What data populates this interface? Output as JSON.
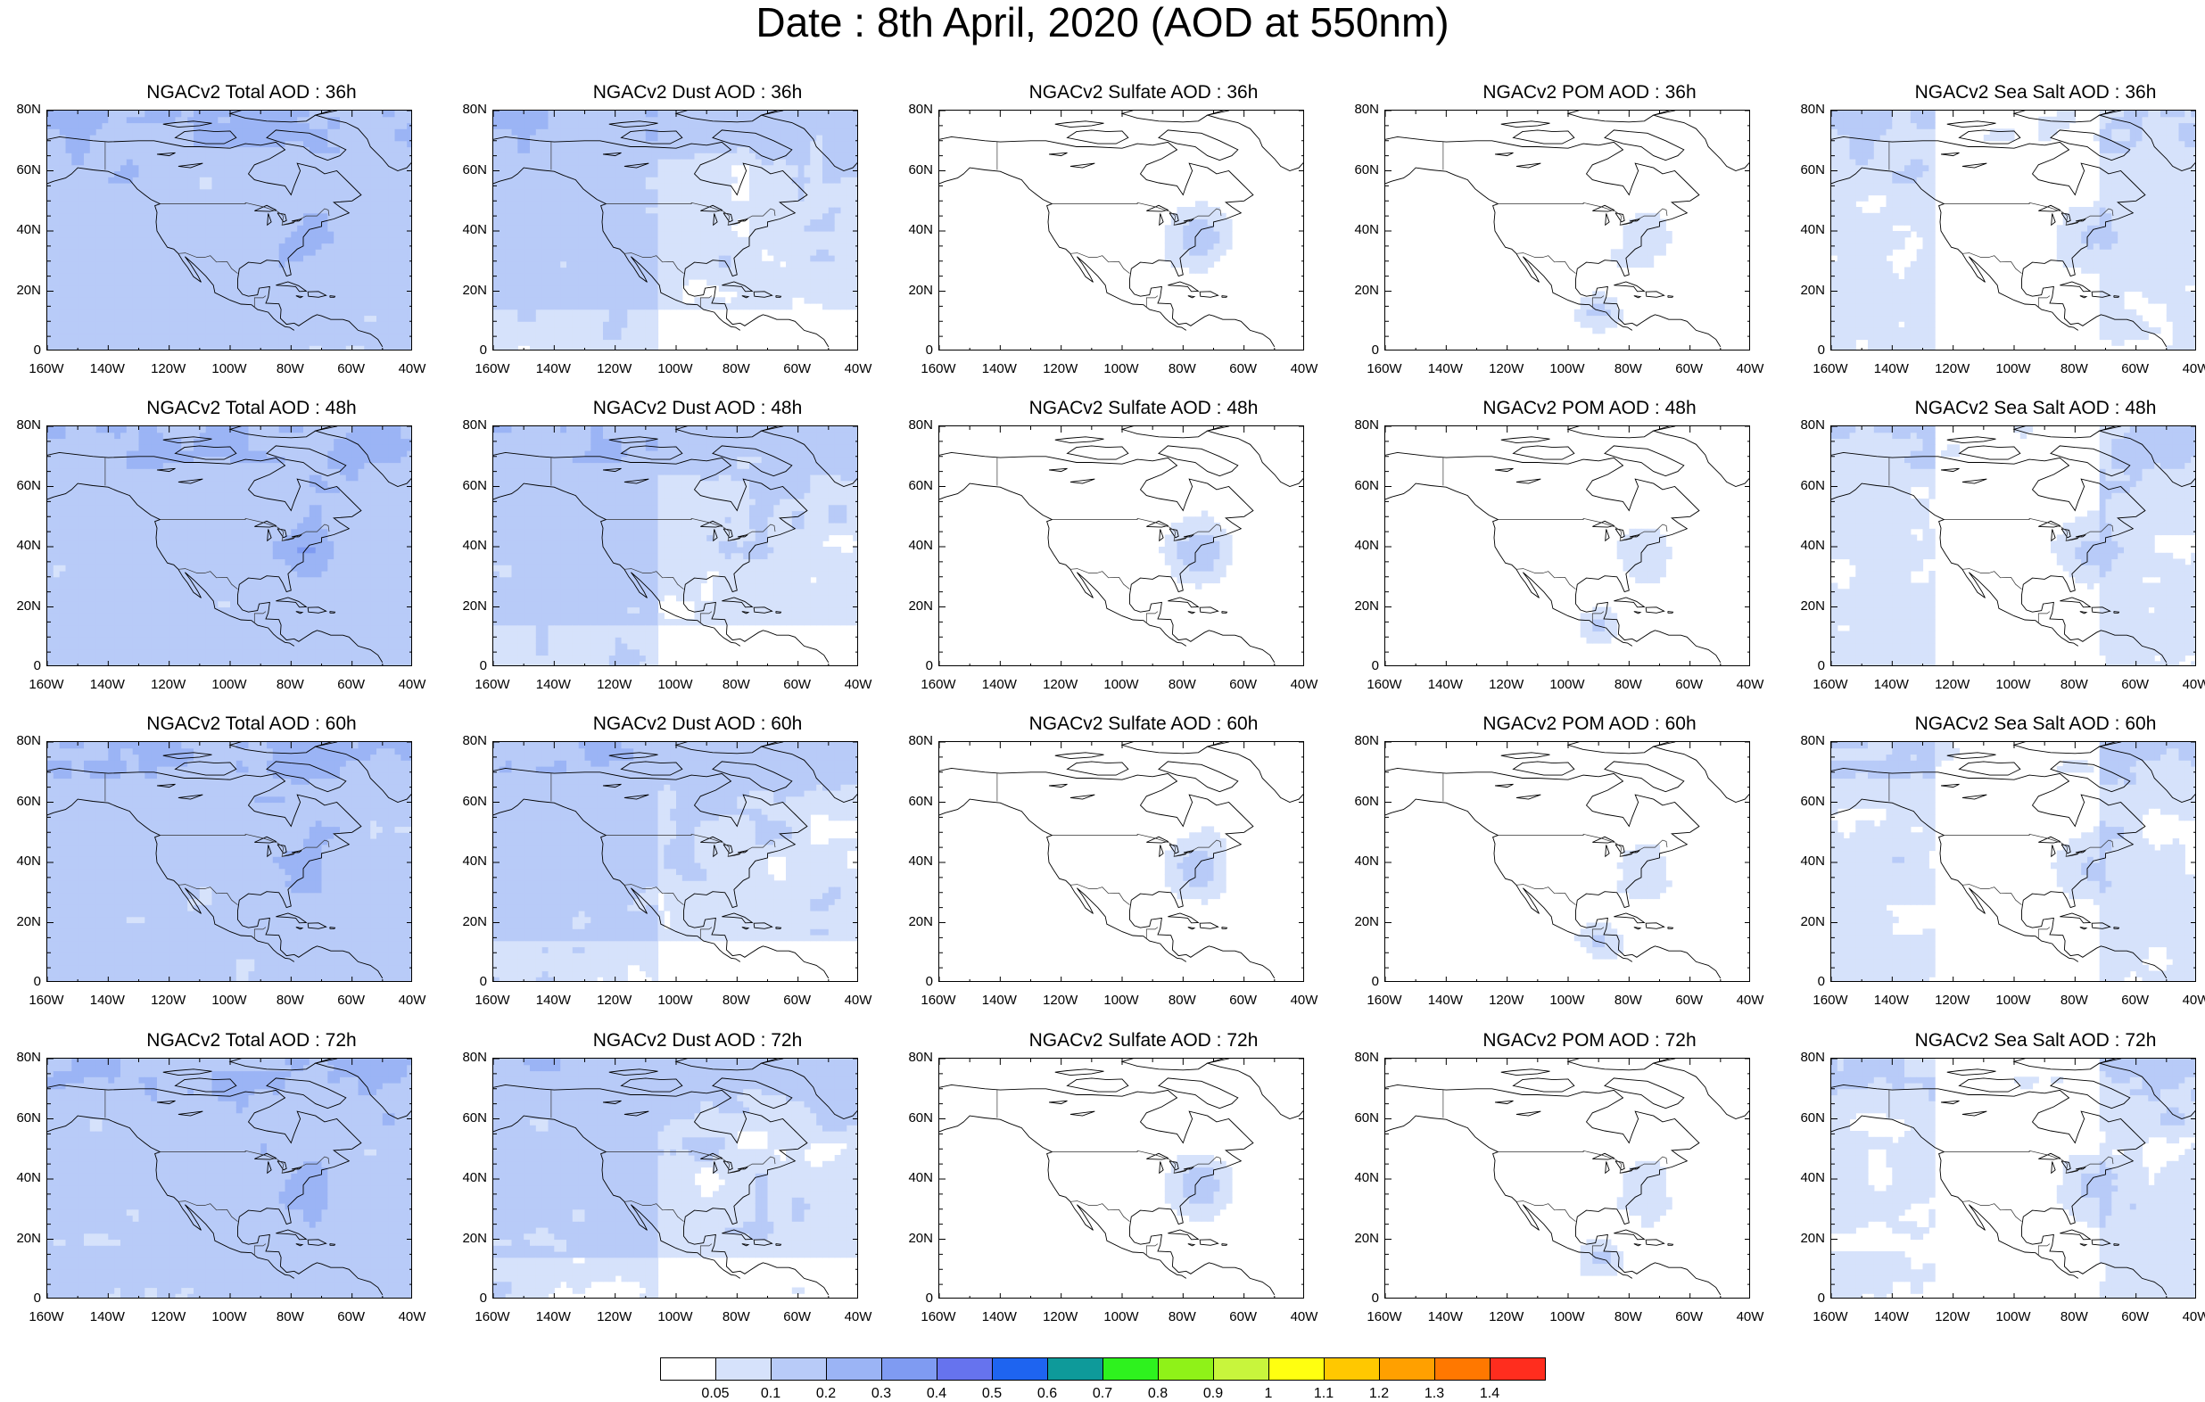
{
  "title": "Date : 8th April, 2020 (AOD at 550nm)",
  "axes": {
    "lat_ticks": [
      "80N",
      "60N",
      "40N",
      "20N",
      "0"
    ],
    "lon_ticks": [
      "160W",
      "140W",
      "120W",
      "100W",
      "80W",
      "60W",
      "40W"
    ],
    "lon_range": [
      -160,
      -40
    ],
    "lat_range": [
      0,
      80
    ]
  },
  "panels": [
    {
      "title": "NGACv2 Total AOD : 36h",
      "field": "total",
      "lead": 36
    },
    {
      "title": "NGACv2 Dust AOD : 36h",
      "field": "dust",
      "lead": 36
    },
    {
      "title": "NGACv2 Sulfate AOD : 36h",
      "field": "sulfate",
      "lead": 36
    },
    {
      "title": "NGACv2 POM AOD : 36h",
      "field": "pom",
      "lead": 36
    },
    {
      "title": "NGACv2 Sea Salt AOD : 36h",
      "field": "seasalt",
      "lead": 36
    },
    {
      "title": "NGACv2 Total AOD : 48h",
      "field": "total",
      "lead": 48
    },
    {
      "title": "NGACv2 Dust AOD : 48h",
      "field": "dust",
      "lead": 48
    },
    {
      "title": "NGACv2 Sulfate AOD : 48h",
      "field": "sulfate",
      "lead": 48
    },
    {
      "title": "NGACv2 POM AOD : 48h",
      "field": "pom",
      "lead": 48
    },
    {
      "title": "NGACv2 Sea Salt AOD : 48h",
      "field": "seasalt",
      "lead": 48
    },
    {
      "title": "NGACv2 Total AOD : 60h",
      "field": "total",
      "lead": 60
    },
    {
      "title": "NGACv2 Dust AOD : 60h",
      "field": "dust",
      "lead": 60
    },
    {
      "title": "NGACv2 Sulfate AOD : 60h",
      "field": "sulfate",
      "lead": 60
    },
    {
      "title": "NGACv2 POM AOD : 60h",
      "field": "pom",
      "lead": 60
    },
    {
      "title": "NGACv2 Sea Salt AOD : 60h",
      "field": "seasalt",
      "lead": 60
    },
    {
      "title": "NGACv2 Total AOD : 72h",
      "field": "total",
      "lead": 72
    },
    {
      "title": "NGACv2 Dust AOD : 72h",
      "field": "dust",
      "lead": 72
    },
    {
      "title": "NGACv2 Sulfate AOD : 72h",
      "field": "sulfate",
      "lead": 72
    },
    {
      "title": "NGACv2 POM AOD : 72h",
      "field": "pom",
      "lead": 72
    },
    {
      "title": "NGACv2 Sea Salt  AOD : 72h",
      "field": "seasalt",
      "lead": 72
    }
  ],
  "colorbar": {
    "labels": [
      "0.05",
      "0.1",
      "0.2",
      "0.3",
      "0.4",
      "0.5",
      "0.6",
      "0.7",
      "0.8",
      "0.9",
      "1",
      "1.1",
      "1.2",
      "1.3",
      "1.4"
    ],
    "colors": [
      "#ffffff",
      "#d6e2fb",
      "#b8cbf8",
      "#9bb4f5",
      "#7f9bf2",
      "#6673ee",
      "#1e64f0",
      "#0e9a9a",
      "#2ef21e",
      "#8ff218",
      "#c8f53c",
      "#ffff10",
      "#ffc800",
      "#ffa000",
      "#ff7800",
      "#ff2d1e"
    ]
  }
}
